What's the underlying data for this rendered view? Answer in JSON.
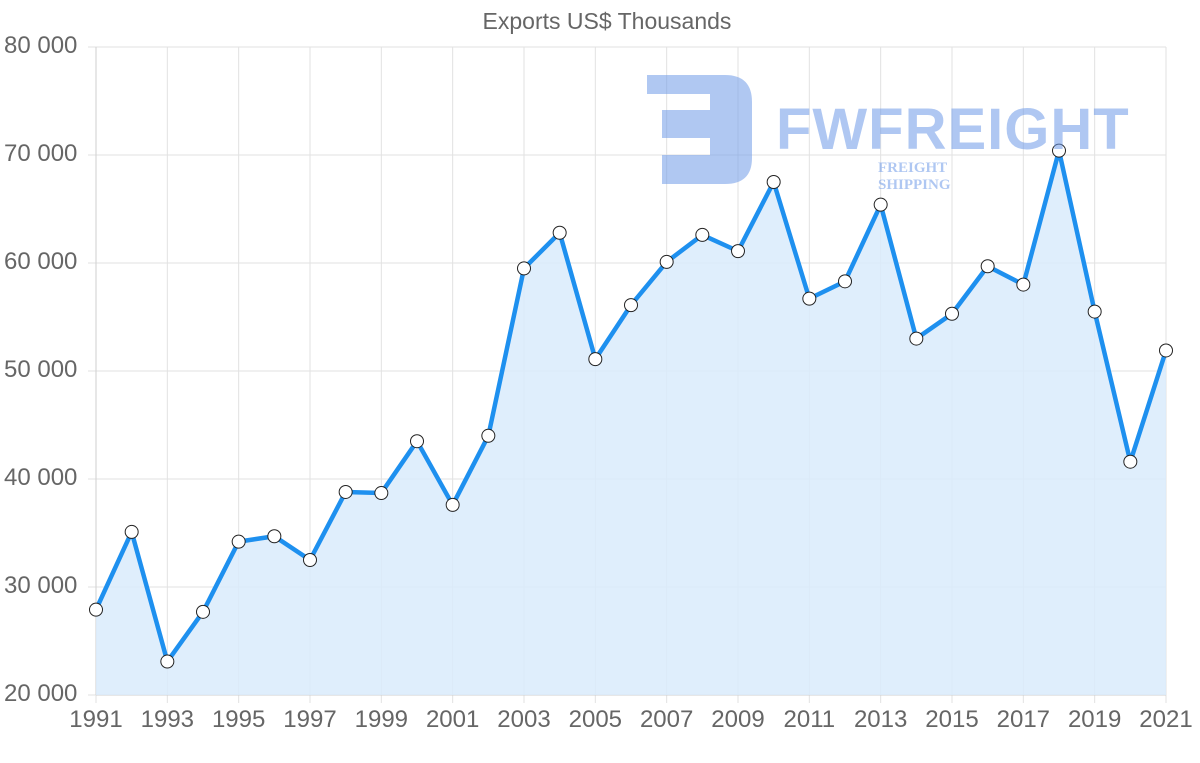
{
  "chart_data": {
    "type": "area",
    "title": "Exports US$ Thousands",
    "xlabel": "",
    "ylabel": "",
    "ylim": [
      20000,
      80000
    ],
    "yticks": [
      "80 000",
      "70 000",
      "60 000",
      "50 000",
      "40 000",
      "30 000",
      "20 000"
    ],
    "xticks": [
      "1991",
      "1993",
      "1995",
      "1997",
      "1999",
      "2001",
      "2003",
      "2005",
      "2007",
      "2009",
      "2011",
      "2013",
      "2015",
      "2017",
      "2019",
      "2021"
    ],
    "grid": true,
    "legend": null,
    "x": [
      1991,
      1992,
      1993,
      1994,
      1995,
      1996,
      1997,
      1998,
      1999,
      2000,
      2001,
      2002,
      2003,
      2004,
      2005,
      2006,
      2007,
      2008,
      2009,
      2010,
      2011,
      2012,
      2013,
      2014,
      2015,
      2016,
      2017,
      2018,
      2019,
      2020,
      2021
    ],
    "series": [
      {
        "name": "Exports",
        "color": "#1e90ef",
        "fill": "#d9ebfc",
        "values": [
          27900,
          35100,
          23100,
          27700,
          34200,
          34700,
          32500,
          38800,
          38700,
          43500,
          37600,
          44000,
          59500,
          62800,
          51100,
          56100,
          60100,
          62600,
          61100,
          67500,
          56700,
          58300,
          65400,
          53000,
          55300,
          59700,
          58000,
          70400,
          55500,
          41600,
          51900
        ]
      }
    ]
  },
  "watermark": {
    "brand": "FWFREIGHT",
    "tagline": "FREIGHT SHIPPING"
  }
}
